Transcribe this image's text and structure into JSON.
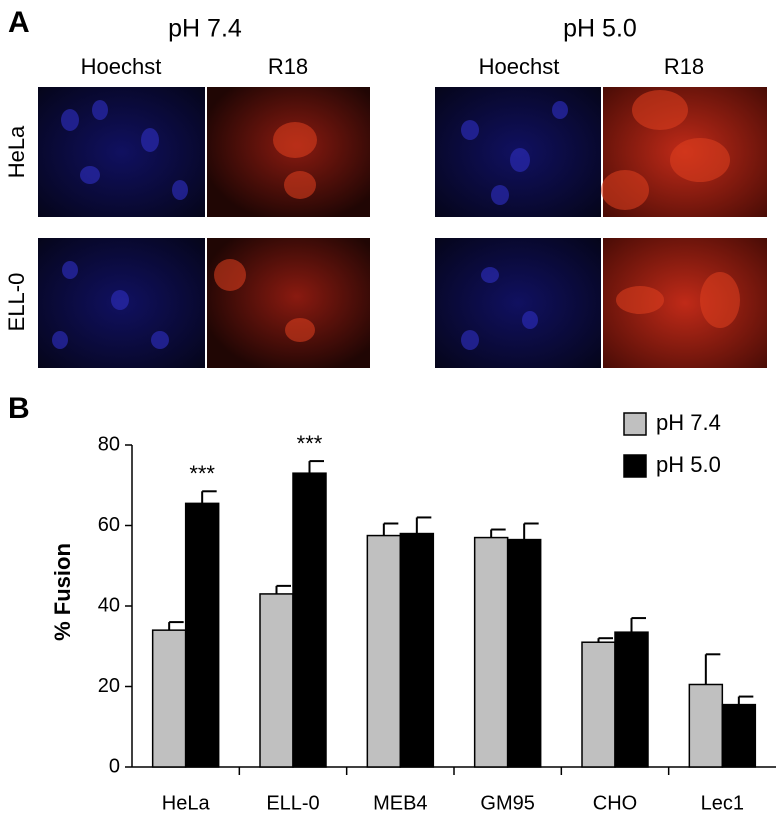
{
  "panel_a": {
    "label": "A",
    "conditions": [
      "pH 7.4",
      "pH 5.0"
    ],
    "stains": [
      "Hoechst",
      "R18",
      "Hoechst",
      "R18"
    ],
    "cell_lines": [
      "HeLa",
      "ELL-0"
    ]
  },
  "chart_data": {
    "type": "bar",
    "panel_label": "B",
    "y_label": "% Fusion",
    "categories": [
      "HeLa",
      "ELL-0",
      "MEB4",
      "GM95",
      "CHO",
      "Lec1"
    ],
    "series": [
      {
        "name": "pH 7.4",
        "color": "#c0c0c0",
        "values": [
          34,
          43,
          57.5,
          57,
          31,
          20.5
        ],
        "errors": [
          2,
          2,
          3,
          2,
          1,
          7.5
        ]
      },
      {
        "name": "pH 5.0",
        "color": "#000000",
        "values": [
          65.5,
          73,
          58,
          56.5,
          33.5,
          15.5
        ],
        "errors": [
          3,
          3,
          4,
          4,
          3.5,
          2
        ]
      }
    ],
    "annotations": [
      {
        "text": "***",
        "category": "HeLa",
        "series": "pH 5.0"
      },
      {
        "text": "***",
        "category": "ELL-0",
        "series": "pH 5.0"
      }
    ],
    "ylim": [
      0,
      80
    ],
    "yticks": [
      0,
      20,
      40,
      60,
      80
    ],
    "grid": false,
    "legend": "top-right"
  }
}
